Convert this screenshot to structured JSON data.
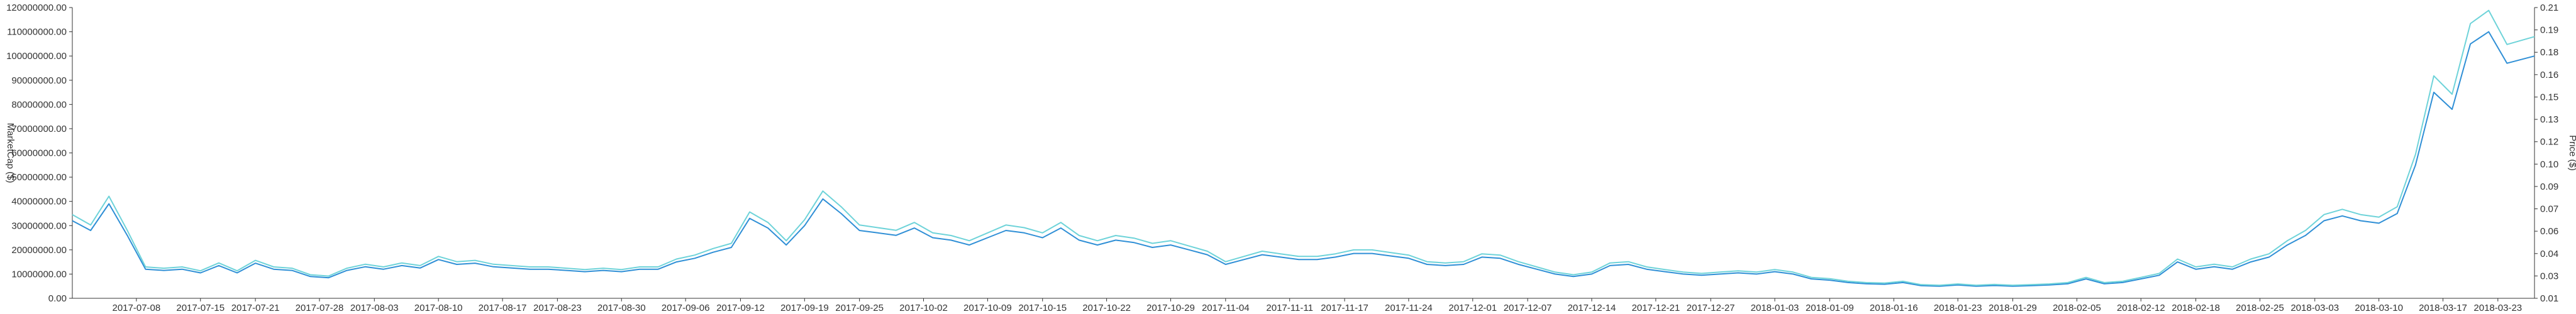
{
  "chart_data": {
    "type": "line",
    "title": "",
    "xlabel": "",
    "ylabel_left": "MarketCap ($)",
    "ylabel_right": "Price ($)",
    "grid": false,
    "legend": "none",
    "colors": {
      "series_dark": "#2f8fd6",
      "series_light": "#6ed3d9",
      "axis": "#333333"
    },
    "x_range": [
      "2017-07-01",
      "2018-03-27"
    ],
    "ylim_left": [
      0,
      120000000
    ],
    "ylim_right": [
      0.01,
      0.21
    ],
    "left_ticks": [
      "0.00",
      "10000000.00",
      "20000000.00",
      "30000000.00",
      "40000000.00",
      "50000000.00",
      "60000000.00",
      "70000000.00",
      "80000000.00",
      "90000000.00",
      "100000000.00",
      "110000000.00",
      "120000000.00"
    ],
    "right_ticks": [
      "0.01",
      "0.03",
      "0.04",
      "0.06",
      "0.07",
      "0.09",
      "0.10",
      "0.12",
      "0.13",
      "0.15",
      "0.16",
      "0.18",
      "0.19",
      "0.21"
    ],
    "x_ticks": [
      "2017-07-08",
      "2017-07-15",
      "2017-07-21",
      "2017-07-28",
      "2017-08-03",
      "2017-08-10",
      "2017-08-17",
      "2017-08-23",
      "2017-08-30",
      "2017-09-06",
      "2017-09-12",
      "2017-09-19",
      "2017-09-25",
      "2017-10-02",
      "2017-10-09",
      "2017-10-15",
      "2017-10-22",
      "2017-10-29",
      "2017-11-04",
      "2017-11-11",
      "2017-11-17",
      "2017-11-24",
      "2017-12-01",
      "2017-12-07",
      "2017-12-14",
      "2017-12-21",
      "2017-12-27",
      "2018-01-03",
      "2018-01-09",
      "2018-01-16",
      "2018-01-23",
      "2018-01-29",
      "2018-02-05",
      "2018-02-12",
      "2018-02-18",
      "2018-02-25",
      "2018-03-03",
      "2018-03-10",
      "2018-03-17",
      "2018-03-23"
    ],
    "series": [
      {
        "axis": "left",
        "points": [
          [
            "2017-07-01",
            32000000
          ],
          [
            "2017-07-03",
            28000000
          ],
          [
            "2017-07-05",
            39000000
          ],
          [
            "2017-07-07",
            26000000
          ],
          [
            "2017-07-09",
            12000000
          ],
          [
            "2017-07-11",
            11500000
          ],
          [
            "2017-07-13",
            12000000
          ],
          [
            "2017-07-15",
            10500000
          ],
          [
            "2017-07-17",
            13500000
          ],
          [
            "2017-07-19",
            10500000
          ],
          [
            "2017-07-21",
            14500000
          ],
          [
            "2017-07-23",
            12000000
          ],
          [
            "2017-07-25",
            11500000
          ],
          [
            "2017-07-27",
            9000000
          ],
          [
            "2017-07-29",
            8500000
          ],
          [
            "2017-07-31",
            11500000
          ],
          [
            "2017-08-02",
            13000000
          ],
          [
            "2017-08-04",
            12000000
          ],
          [
            "2017-08-06",
            13500000
          ],
          [
            "2017-08-08",
            12500000
          ],
          [
            "2017-08-10",
            16000000
          ],
          [
            "2017-08-12",
            14000000
          ],
          [
            "2017-08-14",
            14500000
          ],
          [
            "2017-08-16",
            13000000
          ],
          [
            "2017-08-18",
            12500000
          ],
          [
            "2017-08-20",
            12000000
          ],
          [
            "2017-08-22",
            12000000
          ],
          [
            "2017-08-24",
            11500000
          ],
          [
            "2017-08-26",
            11000000
          ],
          [
            "2017-08-28",
            11500000
          ],
          [
            "2017-08-30",
            11000000
          ],
          [
            "2017-09-01",
            12000000
          ],
          [
            "2017-09-03",
            12000000
          ],
          [
            "2017-09-05",
            15000000
          ],
          [
            "2017-09-07",
            16500000
          ],
          [
            "2017-09-09",
            19000000
          ],
          [
            "2017-09-11",
            21000000
          ],
          [
            "2017-09-13",
            33000000
          ],
          [
            "2017-09-15",
            29000000
          ],
          [
            "2017-09-17",
            22000000
          ],
          [
            "2017-09-19",
            30000000
          ],
          [
            "2017-09-21",
            41000000
          ],
          [
            "2017-09-23",
            35000000
          ],
          [
            "2017-09-25",
            28000000
          ],
          [
            "2017-09-27",
            27000000
          ],
          [
            "2017-09-29",
            26000000
          ],
          [
            "2017-10-01",
            29000000
          ],
          [
            "2017-10-03",
            25000000
          ],
          [
            "2017-10-05",
            24000000
          ],
          [
            "2017-10-07",
            22000000
          ],
          [
            "2017-10-09",
            25000000
          ],
          [
            "2017-10-11",
            28000000
          ],
          [
            "2017-10-13",
            27000000
          ],
          [
            "2017-10-15",
            25000000
          ],
          [
            "2017-10-17",
            29000000
          ],
          [
            "2017-10-19",
            24000000
          ],
          [
            "2017-10-21",
            22000000
          ],
          [
            "2017-10-23",
            24000000
          ],
          [
            "2017-10-25",
            23000000
          ],
          [
            "2017-10-27",
            21000000
          ],
          [
            "2017-10-29",
            22000000
          ],
          [
            "2017-10-31",
            20000000
          ],
          [
            "2017-11-02",
            18000000
          ],
          [
            "2017-11-04",
            14000000
          ],
          [
            "2017-11-06",
            16000000
          ],
          [
            "2017-11-08",
            18000000
          ],
          [
            "2017-11-10",
            17000000
          ],
          [
            "2017-11-12",
            16000000
          ],
          [
            "2017-11-14",
            16000000
          ],
          [
            "2017-11-16",
            17000000
          ],
          [
            "2017-11-18",
            18500000
          ],
          [
            "2017-11-20",
            18500000
          ],
          [
            "2017-11-22",
            17500000
          ],
          [
            "2017-11-24",
            16500000
          ],
          [
            "2017-11-26",
            14000000
          ],
          [
            "2017-11-28",
            13500000
          ],
          [
            "2017-11-30",
            14000000
          ],
          [
            "2017-12-02",
            17000000
          ],
          [
            "2017-12-04",
            16500000
          ],
          [
            "2017-12-06",
            14000000
          ],
          [
            "2017-12-08",
            12000000
          ],
          [
            "2017-12-10",
            10000000
          ],
          [
            "2017-12-12",
            9000000
          ],
          [
            "2017-12-14",
            10000000
          ],
          [
            "2017-12-16",
            13500000
          ],
          [
            "2017-12-18",
            14000000
          ],
          [
            "2017-12-20",
            12000000
          ],
          [
            "2017-12-22",
            11000000
          ],
          [
            "2017-12-24",
            10000000
          ],
          [
            "2017-12-26",
            9500000
          ],
          [
            "2017-12-28",
            10000000
          ],
          [
            "2017-12-30",
            10500000
          ],
          [
            "2018-01-01",
            10000000
          ],
          [
            "2018-01-03",
            11000000
          ],
          [
            "2018-01-05",
            10000000
          ],
          [
            "2018-01-07",
            8000000
          ],
          [
            "2018-01-09",
            7500000
          ],
          [
            "2018-01-11",
            6500000
          ],
          [
            "2018-01-13",
            6000000
          ],
          [
            "2018-01-15",
            5800000
          ],
          [
            "2018-01-17",
            6500000
          ],
          [
            "2018-01-19",
            5200000
          ],
          [
            "2018-01-21",
            5000000
          ],
          [
            "2018-01-23",
            5500000
          ],
          [
            "2018-01-25",
            5000000
          ],
          [
            "2018-01-27",
            5300000
          ],
          [
            "2018-01-29",
            5000000
          ],
          [
            "2018-01-31",
            5200000
          ],
          [
            "2018-02-02",
            5500000
          ],
          [
            "2018-02-04",
            6000000
          ],
          [
            "2018-02-06",
            8000000
          ],
          [
            "2018-02-08",
            6000000
          ],
          [
            "2018-02-10",
            6500000
          ],
          [
            "2018-02-12",
            8000000
          ],
          [
            "2018-02-14",
            9500000
          ],
          [
            "2018-02-16",
            15000000
          ],
          [
            "2018-02-18",
            12000000
          ],
          [
            "2018-02-20",
            13000000
          ],
          [
            "2018-02-22",
            12000000
          ],
          [
            "2018-02-24",
            15000000
          ],
          [
            "2018-02-26",
            17000000
          ],
          [
            "2018-02-28",
            22000000
          ],
          [
            "2018-03-02",
            26000000
          ],
          [
            "2018-03-04",
            32000000
          ],
          [
            "2018-03-06",
            34000000
          ],
          [
            "2018-03-08",
            32000000
          ],
          [
            "2018-03-10",
            31000000
          ],
          [
            "2018-03-12",
            35000000
          ],
          [
            "2018-03-14",
            55000000
          ],
          [
            "2018-03-16",
            85000000
          ],
          [
            "2018-03-18",
            78000000
          ],
          [
            "2018-03-20",
            105000000
          ],
          [
            "2018-03-22",
            110000000
          ],
          [
            "2018-03-24",
            97000000
          ],
          [
            "2018-03-27",
            100000000
          ]
        ]
      }
    ]
  }
}
